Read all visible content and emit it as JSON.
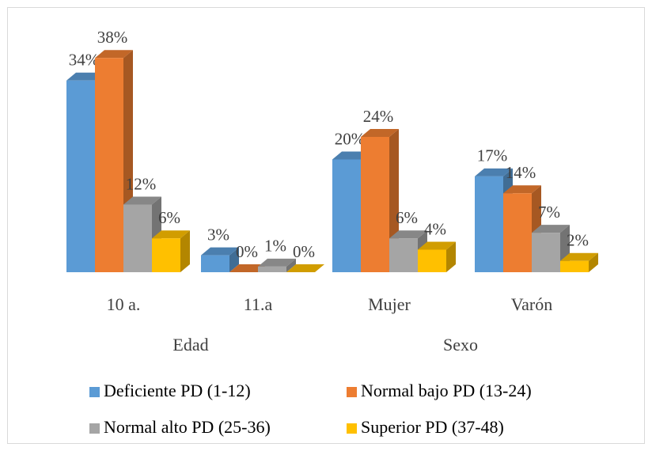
{
  "chart_data": {
    "type": "bar3d",
    "categories": [
      "10 a.",
      "11.a",
      "Mujer",
      "Varón"
    ],
    "group_labels": [
      "Edad",
      "Sexo"
    ],
    "ylim": [
      0,
      40
    ],
    "legend": "bottom",
    "series": [
      {
        "name": "Deficiente PD (1-12)",
        "color": "#5b9bd5",
        "values": [
          34,
          3,
          20,
          17
        ],
        "value_labels": [
          "34%",
          "3%",
          "20%",
          "17%"
        ]
      },
      {
        "name": "Normal bajo PD (13-24)",
        "color": "#ed7d31",
        "values": [
          38,
          0,
          24,
          14
        ],
        "value_labels": [
          "38%",
          "0%",
          "24%",
          "14%"
        ]
      },
      {
        "name": "Normal alto PD (25-36)",
        "color": "#a5a5a5",
        "values": [
          12,
          1,
          6,
          7
        ],
        "value_labels": [
          "12%",
          "1%",
          "6%",
          "7%"
        ]
      },
      {
        "name": "Superior PD (37-48)",
        "color": "#ffc000",
        "values": [
          6,
          0,
          4,
          2
        ],
        "value_labels": [
          "6%",
          "0%",
          "4%",
          "2%"
        ]
      }
    ]
  }
}
